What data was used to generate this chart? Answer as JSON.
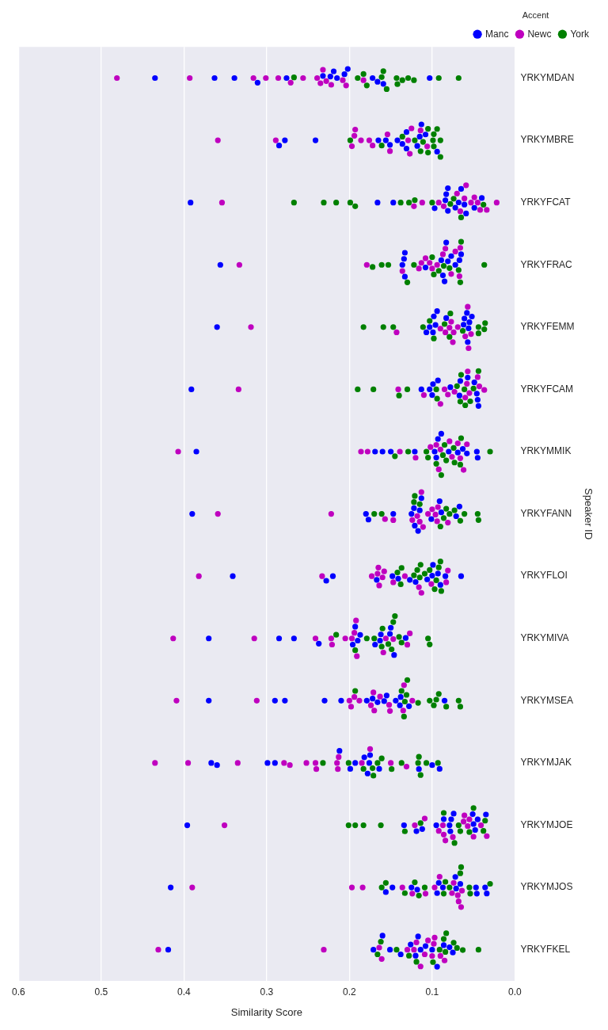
{
  "chart_data": {
    "type": "scatter",
    "orientation": "horizontal",
    "categories": [
      "YRKYMDAN",
      "YRKYMBRE",
      "YRKYFCAT",
      "YRKYFRAC",
      "YRKYFEMM",
      "YRKYFCAM",
      "YRKYMMIK",
      "YRKYFANN",
      "YRKYFLOI",
      "YRKYMIVA",
      "YRKYMSEA",
      "YRKYMJAK",
      "YRKYMJOE",
      "YRKYMJOS",
      "YRKYFKEL"
    ],
    "xlim": [
      0.6,
      0
    ],
    "xticks": [
      0.6,
      0.5,
      0.4,
      0.3,
      0.2,
      0.1,
      {
        "value": 0,
        "label": "0.0"
      }
    ],
    "xlabel": "Similarity Score",
    "ylabel": "Speaker ID",
    "legend_title": "Accent",
    "legend": "top right",
    "grid": "x",
    "marker": "circle",
    "series": [
      {
        "name": "Manc",
        "color": "#0000ff",
        "x": [
          "YRKYMDAN",
          "YRKYMDAN",
          "YRKYMDAN",
          "YRKYMDAN",
          "YRKYMDAN",
          "YRKYMDAN",
          "YRKYMDAN",
          "YRKYMDAN",
          "YRKYMDAN",
          "YRKYMDAN",
          "YRKYMDAN",
          "YRKYMDAN",
          "YRKYMDAN",
          "YRKYMDAN",
          "YRKYMDAN",
          "YRKYMBRE",
          "YRKYMBRE",
          "YRKYMBRE",
          "YRKYMBRE",
          "YRKYMBRE",
          "YRKYMBRE",
          "YRKYMBRE",
          "YRKYMBRE",
          "YRKYMBRE",
          "YRKYMBRE",
          "YRKYMBRE",
          "YRKYMBRE",
          "YRKYMBRE",
          "YRKYMBRE",
          "YRKYMBRE",
          "YRKYFCAT",
          "YRKYFCAT",
          "YRKYFCAT",
          "YRKYFCAT",
          "YRKYFCAT",
          "YRKYFCAT",
          "YRKYFCAT",
          "YRKYFCAT",
          "YRKYFCAT",
          "YRKYFCAT",
          "YRKYFCAT",
          "YRKYFCAT",
          "YRKYFCAT",
          "YRKYFCAT",
          "YRKYFCAT",
          "YRKYFRAC",
          "YRKYFRAC",
          "YRKYFRAC",
          "YRKYFRAC",
          "YRKYFRAC",
          "YRKYFRAC",
          "YRKYFRAC",
          "YRKYFRAC",
          "YRKYFRAC",
          "YRKYFRAC",
          "YRKYFRAC",
          "YRKYFRAC",
          "YRKYFRAC",
          "YRKYFRAC",
          "YRKYFRAC",
          "YRKYFEMM",
          "YRKYFEMM",
          "YRKYFEMM",
          "YRKYFEMM",
          "YRKYFEMM",
          "YRKYFEMM",
          "YRKYFEMM",
          "YRKYFEMM",
          "YRKYFEMM",
          "YRKYFEMM",
          "YRKYFEMM",
          "YRKYFEMM",
          "YRKYFEMM",
          "YRKYFEMM",
          "YRKYFEMM",
          "YRKYFCAM",
          "YRKYFCAM",
          "YRKYFCAM",
          "YRKYFCAM",
          "YRKYFCAM",
          "YRKYFCAM",
          "YRKYFCAM",
          "YRKYFCAM",
          "YRKYFCAM",
          "YRKYFCAM",
          "YRKYFCAM",
          "YRKYFCAM",
          "YRKYFCAM",
          "YRKYFCAM",
          "YRKYMMIK",
          "YRKYMMIK",
          "YRKYMMIK",
          "YRKYMMIK",
          "YRKYMMIK",
          "YRKYMMIK",
          "YRKYMMIK",
          "YRKYMMIK",
          "YRKYMMIK",
          "YRKYMMIK",
          "YRKYMMIK",
          "YRKYMMIK",
          "YRKYMMIK",
          "YRKYMMIK",
          "YRKYMMIK",
          "YRKYFANN",
          "YRKYFANN",
          "YRKYFANN",
          "YRKYFANN",
          "YRKYFANN",
          "YRKYFANN",
          "YRKYFANN",
          "YRKYFANN",
          "YRKYFANN",
          "YRKYFANN",
          "YRKYFANN",
          "YRKYFANN",
          "YRKYFANN",
          "YRKYFANN",
          "YRKYFANN",
          "YRKYFLOI",
          "YRKYFLOI",
          "YRKYFLOI",
          "YRKYFLOI",
          "YRKYFLOI",
          "YRKYFLOI",
          "YRKYFLOI",
          "YRKYFLOI",
          "YRKYFLOI",
          "YRKYFLOI",
          "YRKYFLOI",
          "YRKYFLOI",
          "YRKYFLOI",
          "YRKYFLOI",
          "YRKYFLOI",
          "YRKYMIVA",
          "YRKYMIVA",
          "YRKYMIVA",
          "YRKYMIVA",
          "YRKYMIVA",
          "YRKYMIVA",
          "YRKYMIVA",
          "YRKYMIVA",
          "YRKYMIVA",
          "YRKYMIVA",
          "YRKYMIVA",
          "YRKYMIVA",
          "YRKYMIVA",
          "YRKYMIVA",
          "YRKYMIVA",
          "YRKYMSEA",
          "YRKYMSEA",
          "YRKYMSEA",
          "YRKYMSEA",
          "YRKYMSEA",
          "YRKYMSEA",
          "YRKYMSEA",
          "YRKYMSEA",
          "YRKYMSEA",
          "YRKYMSEA",
          "YRKYMSEA",
          "YRKYMSEA",
          "YRKYMSEA",
          "YRKYMSEA",
          "YRKYMSEA",
          "YRKYMJAK",
          "YRKYMJAK",
          "YRKYMJAK",
          "YRKYMJAK",
          "YRKYMJAK",
          "YRKYMJAK",
          "YRKYMJAK",
          "YRKYMJAK",
          "YRKYMJAK",
          "YRKYMJAK",
          "YRKYMJAK",
          "YRKYMJAK",
          "YRKYMJAK",
          "YRKYMJAK",
          "YRKYMJAK",
          "YRKYMJOE",
          "YRKYMJOE",
          "YRKYMJOE",
          "YRKYMJOE",
          "YRKYMJOE",
          "YRKYMJOE",
          "YRKYMJOE",
          "YRKYMJOE",
          "YRKYMJOE",
          "YRKYMJOE",
          "YRKYMJOE",
          "YRKYMJOE",
          "YRKYMJOE",
          "YRKYMJOE",
          "YRKYMJOE",
          "YRKYMJOS",
          "YRKYMJOS",
          "YRKYMJOS",
          "YRKYMJOS",
          "YRKYMJOS",
          "YRKYMJOS",
          "YRKYMJOS",
          "YRKYMJOS",
          "YRKYMJOS",
          "YRKYMJOS",
          "YRKYMJOS",
          "YRKYMJOS",
          "YRKYMJOS",
          "YRKYMJOS",
          "YRKYMJOS",
          "YRKYFKEL",
          "YRKYFKEL",
          "YRKYFKEL",
          "YRKYFKEL",
          "YRKYFKEL",
          "YRKYFKEL",
          "YRKYFKEL",
          "YRKYFKEL",
          "YRKYFKEL",
          "YRKYFKEL",
          "YRKYFKEL",
          "YRKYFKEL",
          "YRKYFKEL",
          "YRKYFKEL",
          "YRKYFKEL"
        ],
        "values": [
          0.223,
          0.232,
          0.206,
          0.159,
          0.435,
          0.363,
          0.339,
          0.311,
          0.276,
          0.215,
          0.202,
          0.166,
          0.103,
          0.219,
          0.172,
          0.115,
          0.131,
          0.094,
          0.165,
          0.142,
          0.278,
          0.241,
          0.151,
          0.113,
          0.285,
          0.136,
          0.118,
          0.156,
          0.108,
          0.131,
          0.065,
          0.081,
          0.059,
          0.081,
          0.04,
          0.392,
          0.166,
          0.097,
          0.084,
          0.147,
          0.068,
          0.049,
          0.083,
          0.072,
          0.061,
          0.085,
          0.072,
          0.067,
          0.083,
          0.134,
          0.089,
          0.133,
          0.356,
          0.065,
          0.108,
          0.077,
          0.133,
          0.081,
          0.136,
          0.087,
          0.057,
          0.099,
          0.056,
          0.055,
          0.36,
          0.103,
          0.083,
          0.052,
          0.094,
          0.061,
          0.107,
          0.096,
          0.098,
          0.062,
          0.058,
          0.049,
          0.066,
          0.057,
          0.044,
          0.078,
          0.099,
          0.391,
          0.103,
          0.093,
          0.113,
          0.045,
          0.1,
          0.067,
          0.046,
          0.095,
          0.097,
          0.385,
          0.16,
          0.15,
          0.069,
          0.058,
          0.045,
          0.169,
          0.121,
          0.08,
          0.046,
          0.063,
          0.093,
          0.089,
          0.125,
          0.071,
          0.117,
          0.39,
          0.18,
          0.147,
          0.089,
          0.177,
          0.067,
          0.113,
          0.091,
          0.122,
          0.101,
          0.121,
          0.115,
          0.167,
          0.099,
          0.09,
          0.106,
          0.084,
          0.148,
          0.341,
          0.22,
          0.127,
          0.065,
          0.228,
          0.12,
          0.141,
          0.1,
          0.093,
          0.193,
          0.151,
          0.146,
          0.132,
          0.187,
          0.37,
          0.285,
          0.267,
          0.237,
          0.169,
          0.19,
          0.162,
          0.196,
          0.163,
          0.15,
          0.138,
          0.172,
          0.158,
          0.166,
          0.139,
          0.128,
          0.37,
          0.29,
          0.278,
          0.23,
          0.21,
          0.179,
          0.155,
          0.144,
          0.085,
          0.175,
          0.36,
          0.29,
          0.212,
          0.193,
          0.182,
          0.1,
          0.091,
          0.299,
          0.367,
          0.199,
          0.178,
          0.164,
          0.116,
          0.176,
          0.396,
          0.05,
          0.086,
          0.074,
          0.119,
          0.079,
          0.045,
          0.134,
          0.112,
          0.095,
          0.048,
          0.035,
          0.077,
          0.078,
          0.051,
          0.072,
          0.066,
          0.092,
          0.156,
          0.036,
          0.094,
          0.416,
          0.148,
          0.046,
          0.118,
          0.047,
          0.034,
          0.087,
          0.125,
          0.071,
          0.1,
          0.075,
          0.108,
          0.16,
          0.094,
          0.419,
          0.171,
          0.151,
          0.117,
          0.138,
          0.12,
          0.079,
          0.126,
          0.114,
          0.086
        ]
      },
      {
        "name": "Newc",
        "color": "#bf00bf",
        "x": [
          "YRKYMDAN",
          "YRKYMDAN",
          "YRKYMDAN",
          "YRKYMDAN",
          "YRKYMDAN",
          "YRKYMDAN",
          "YRKYMDAN",
          "YRKYMDAN",
          "YRKYMDAN",
          "YRKYMDAN",
          "YRKYMDAN",
          "YRKYMDAN",
          "YRKYMDAN",
          "YRKYMDAN",
          "YRKYMDAN",
          "YRKYMBRE",
          "YRKYMBRE",
          "YRKYMBRE",
          "YRKYMBRE",
          "YRKYMBRE",
          "YRKYMBRE",
          "YRKYMBRE",
          "YRKYMBRE",
          "YRKYMBRE",
          "YRKYMBRE",
          "YRKYMBRE",
          "YRKYMBRE",
          "YRKYMBRE",
          "YRKYMBRE",
          "YRKYMBRE",
          "YRKYFCAT",
          "YRKYFCAT",
          "YRKYFCAT",
          "YRKYFCAT",
          "YRKYFCAT",
          "YRKYFCAT",
          "YRKYFCAT",
          "YRKYFCAT",
          "YRKYFCAT",
          "YRKYFCAT",
          "YRKYFCAT",
          "YRKYFCAT",
          "YRKYFCAT",
          "YRKYFCAT",
          "YRKYFCAT",
          "YRKYFRAC",
          "YRKYFRAC",
          "YRKYFRAC",
          "YRKYFRAC",
          "YRKYFRAC",
          "YRKYFRAC",
          "YRKYFRAC",
          "YRKYFRAC",
          "YRKYFRAC",
          "YRKYFRAC",
          "YRKYFRAC",
          "YRKYFRAC",
          "YRKYFRAC",
          "YRKYFRAC",
          "YRKYFRAC",
          "YRKYFEMM",
          "YRKYFEMM",
          "YRKYFEMM",
          "YRKYFEMM",
          "YRKYFEMM",
          "YRKYFEMM",
          "YRKYFEMM",
          "YRKYFEMM",
          "YRKYFEMM",
          "YRKYFEMM",
          "YRKYFEMM",
          "YRKYFEMM",
          "YRKYFEMM",
          "YRKYFCAM",
          "YRKYFCAM",
          "YRKYFCAM",
          "YRKYFCAM",
          "YRKYFCAM",
          "YRKYFCAM",
          "YRKYFCAM",
          "YRKYFCAM",
          "YRKYFCAM",
          "YRKYFCAM",
          "YRKYFCAM",
          "YRKYFCAM",
          "YRKYFCAM",
          "YRKYFCAM",
          "YRKYMMIK",
          "YRKYMMIK",
          "YRKYMMIK",
          "YRKYMMIK",
          "YRKYMMIK",
          "YRKYMMIK",
          "YRKYMMIK",
          "YRKYMMIK",
          "YRKYMMIK",
          "YRKYMMIK",
          "YRKYMMIK",
          "YRKYMMIK",
          "YRKYMMIK",
          "YRKYMMIK",
          "YRKYMMIK",
          "YRKYFANN",
          "YRKYFANN",
          "YRKYFANN",
          "YRKYFANN",
          "YRKYFANN",
          "YRKYFANN",
          "YRKYFANN",
          "YRKYFANN",
          "YRKYFANN",
          "YRKYFANN",
          "YRKYFANN",
          "YRKYFANN",
          "YRKYFANN",
          "YRKYFANN",
          "YRKYFANN",
          "YRKYFLOI",
          "YRKYFLOI",
          "YRKYFLOI",
          "YRKYFLOI",
          "YRKYFLOI",
          "YRKYFLOI",
          "YRKYFLOI",
          "YRKYFLOI",
          "YRKYFLOI",
          "YRKYFLOI",
          "YRKYFLOI",
          "YRKYFLOI",
          "YRKYFLOI",
          "YRKYFLOI",
          "YRKYFLOI",
          "YRKYMIVA",
          "YRKYMIVA",
          "YRKYMIVA",
          "YRKYMIVA",
          "YRKYMIVA",
          "YRKYMIVA",
          "YRKYMIVA",
          "YRKYMIVA",
          "YRKYMIVA",
          "YRKYMIVA",
          "YRKYMIVA",
          "YRKYMIVA",
          "YRKYMIVA",
          "YRKYMIVA",
          "YRKYMIVA",
          "YRKYMSEA",
          "YRKYMSEA",
          "YRKYMSEA",
          "YRKYMSEA",
          "YRKYMSEA",
          "YRKYMSEA",
          "YRKYMSEA",
          "YRKYMSEA",
          "YRKYMSEA",
          "YRKYMSEA",
          "YRKYMSEA",
          "YRKYMSEA",
          "YRKYMSEA",
          "YRKYMSEA",
          "YRKYMSEA",
          "YRKYMJAK",
          "YRKYMJAK",
          "YRKYMJAK",
          "YRKYMJAK",
          "YRKYMJAK",
          "YRKYMJAK",
          "YRKYMJAK",
          "YRKYMJAK",
          "YRKYMJAK",
          "YRKYMJAK",
          "YRKYMJAK",
          "YRKYMJAK",
          "YRKYMJAK",
          "YRKYMJAK",
          "YRKYMJAK",
          "YRKYMJOE",
          "YRKYMJOE",
          "YRKYMJOE",
          "YRKYMJOE",
          "YRKYMJOE",
          "YRKYMJOE",
          "YRKYMJOE",
          "YRKYMJOE",
          "YRKYMJOE",
          "YRKYMJOE",
          "YRKYMJOE",
          "YRKYMJOE",
          "YRKYMJOE",
          "YRKYMJOE",
          "YRKYMJOE",
          "YRKYMJOS",
          "YRKYMJOS",
          "YRKYMJOS",
          "YRKYMJOS",
          "YRKYMJOS",
          "YRKYMJOS",
          "YRKYMJOS",
          "YRKYMJOS",
          "YRKYMJOS",
          "YRKYMJOS",
          "YRKYMJOS",
          "YRKYMJOS",
          "YRKYMJOS",
          "YRKYMJOS",
          "YRKYFKEL",
          "YRKYFKEL",
          "YRKYFKEL",
          "YRKYFKEL",
          "YRKYFKEL",
          "YRKYFKEL",
          "YRKYFKEL",
          "YRKYFKEL",
          "YRKYFKEL",
          "YRKYFKEL",
          "YRKYFKEL",
          "YRKYFKEL",
          "YRKYFKEL",
          "YRKYFKEL",
          "YRKYFKEL"
        ],
        "values": [
          0.235,
          0.208,
          0.222,
          0.183,
          0.481,
          0.393,
          0.301,
          0.286,
          0.256,
          0.239,
          0.228,
          0.316,
          0.271,
          0.232,
          0.204,
          0.197,
          0.154,
          0.129,
          0.114,
          0.194,
          0.359,
          0.289,
          0.186,
          0.172,
          0.125,
          0.193,
          0.176,
          0.151,
          0.106,
          0.127,
          0.086,
          0.061,
          0.042,
          0.07,
          0.122,
          0.092,
          0.053,
          0.354,
          0.112,
          0.045,
          0.034,
          0.022,
          0.059,
          0.049,
          0.066,
          0.136,
          0.087,
          0.1,
          0.116,
          0.094,
          0.103,
          0.113,
          0.333,
          0.108,
          0.077,
          0.179,
          0.066,
          0.067,
          0.084,
          0.072,
          0.079,
          0.06,
          0.075,
          0.09,
          0.069,
          0.319,
          0.143,
          0.074,
          0.053,
          0.077,
          0.056,
          0.084,
          0.057,
          0.045,
          0.058,
          0.09,
          0.055,
          0.085,
          0.334,
          0.11,
          0.073,
          0.037,
          0.081,
          0.043,
          0.141,
          0.057,
          0.06,
          0.09,
          0.076,
          0.062,
          0.407,
          0.178,
          0.139,
          0.12,
          0.102,
          0.079,
          0.186,
          0.092,
          0.069,
          0.058,
          0.095,
          0.066,
          0.118,
          0.115,
          0.094,
          0.093,
          0.113,
          0.105,
          0.096,
          0.359,
          0.222,
          0.157,
          0.111,
          0.1,
          0.081,
          0.147,
          0.124,
          0.101,
          0.165,
          0.113,
          0.164,
          0.233,
          0.382,
          0.173,
          0.158,
          0.147,
          0.081,
          0.133,
          0.083,
          0.16,
          0.166,
          0.116,
          0.194,
          0.191,
          0.222,
          0.156,
          0.197,
          0.413,
          0.315,
          0.127,
          0.205,
          0.159,
          0.241,
          0.221,
          0.13,
          0.192,
          0.147,
          0.134,
          0.198,
          0.152,
          0.409,
          0.312,
          0.163,
          0.151,
          0.2,
          0.188,
          0.171,
          0.135,
          0.124,
          0.194,
          0.17,
          0.174,
          0.175,
          0.215,
          0.185,
          0.214,
          0.241,
          0.435,
          0.395,
          0.335,
          0.272,
          0.252,
          0.131,
          0.24,
          0.279,
          0.213,
          0.15,
          0.351,
          0.086,
          0.075,
          0.041,
          0.061,
          0.05,
          0.109,
          0.092,
          0.055,
          0.034,
          0.084,
          0.062,
          0.121,
          0.087,
          0.057,
          0.069,
          0.124,
          0.076,
          0.064,
          0.39,
          0.197,
          0.184,
          0.108,
          0.074,
          0.091,
          0.065,
          0.136,
          0.097,
          0.068,
          0.13,
          0.114,
          0.161,
          0.097,
          0.122,
          0.085,
          0.431,
          0.231,
          0.105,
          0.09,
          0.109,
          0.098,
          0.164,
          0.119,
          0.1
        ]
      },
      {
        "name": "York",
        "color": "#008000",
        "x": [
          "YRKYMDAN",
          "YRKYMDAN",
          "YRKYMDAN",
          "YRKYMDAN",
          "YRKYMDAN",
          "YRKYMDAN",
          "YRKYMDAN",
          "YRKYMDAN",
          "YRKYMDAN",
          "YRKYMDAN",
          "YRKYMDAN",
          "YRKYMDAN",
          "YRKYMDAN",
          "YRKYMDAN",
          "YRKYMBRE",
          "YRKYMBRE",
          "YRKYMBRE",
          "YRKYMBRE",
          "YRKYMBRE",
          "YRKYMBRE",
          "YRKYMBRE",
          "YRKYMBRE",
          "YRKYMBRE",
          "YRKYMBRE",
          "YRKYMBRE",
          "YRKYMBRE",
          "YRKYMBRE",
          "YRKYMBRE",
          "YRKYFCAT",
          "YRKYFCAT",
          "YRKYFCAT",
          "YRKYFCAT",
          "YRKYFCAT",
          "YRKYFCAT",
          "YRKYFCAT",
          "YRKYFCAT",
          "YRKYFCAT",
          "YRKYFCAT",
          "YRKYFCAT",
          "YRKYFCAT",
          "YRKYFCAT",
          "YRKYFRAC",
          "YRKYFRAC",
          "YRKYFRAC",
          "YRKYFRAC",
          "YRKYFRAC",
          "YRKYFRAC",
          "YRKYFRAC",
          "YRKYFRAC",
          "YRKYFRAC",
          "YRKYFRAC",
          "YRKYFRAC",
          "YRKYFRAC",
          "YRKYFRAC",
          "YRKYFRAC",
          "YRKYFEMM",
          "YRKYFEMM",
          "YRKYFEMM",
          "YRKYFEMM",
          "YRKYFEMM",
          "YRKYFEMM",
          "YRKYFEMM",
          "YRKYFEMM",
          "YRKYFEMM",
          "YRKYFEMM",
          "YRKYFEMM",
          "YRKYFEMM",
          "YRKYFEMM",
          "YRKYFEMM",
          "YRKYFCAM",
          "YRKYFCAM",
          "YRKYFCAM",
          "YRKYFCAM",
          "YRKYFCAM",
          "YRKYFCAM",
          "YRKYFCAM",
          "YRKYFCAM",
          "YRKYFCAM",
          "YRKYFCAM",
          "YRKYFCAM",
          "YRKYFCAM",
          "YRKYFCAM",
          "YRKYFCAM",
          "YRKYMMIK",
          "YRKYMMIK",
          "YRKYMMIK",
          "YRKYMMIK",
          "YRKYMMIK",
          "YRKYMMIK",
          "YRKYMMIK",
          "YRKYMMIK",
          "YRKYMMIK",
          "YRKYMMIK",
          "YRKYMMIK",
          "YRKYMMIK",
          "YRKYMMIK",
          "YRKYMMIK",
          "YRKYFANN",
          "YRKYFANN",
          "YRKYFANN",
          "YRKYFANN",
          "YRKYFANN",
          "YRKYFANN",
          "YRKYFANN",
          "YRKYFANN",
          "YRKYFANN",
          "YRKYFANN",
          "YRKYFANN",
          "YRKYFANN",
          "YRKYFANN",
          "YRKYFANN",
          "YRKYFLOI",
          "YRKYFLOI",
          "YRKYFLOI",
          "YRKYFLOI",
          "YRKYFLOI",
          "YRKYFLOI",
          "YRKYFLOI",
          "YRKYFLOI",
          "YRKYFLOI",
          "YRKYFLOI",
          "YRKYFLOI",
          "YRKYFLOI",
          "YRKYFLOI",
          "YRKYFLOI",
          "YRKYMIVA",
          "YRKYMIVA",
          "YRKYMIVA",
          "YRKYMIVA",
          "YRKYMIVA",
          "YRKYMIVA",
          "YRKYMIVA",
          "YRKYMIVA",
          "YRKYMIVA",
          "YRKYMIVA",
          "YRKYMIVA",
          "YRKYMIVA",
          "YRKYMIVA",
          "YRKYMIVA",
          "YRKYMSEA",
          "YRKYMSEA",
          "YRKYMSEA",
          "YRKYMSEA",
          "YRKYMSEA",
          "YRKYMSEA",
          "YRKYMSEA",
          "YRKYMSEA",
          "YRKYMSEA",
          "YRKYMSEA",
          "YRKYMSEA",
          "YRKYMSEA",
          "YRKYMSEA",
          "YRKYMSEA",
          "YRKYMJAK",
          "YRKYMJAK",
          "YRKYMJAK",
          "YRKYMJAK",
          "YRKYMJAK",
          "YRKYMJAK",
          "YRKYMJAK",
          "YRKYMJAK",
          "YRKYMJAK",
          "YRKYMJAK",
          "YRKYMJAK",
          "YRKYMJAK",
          "YRKYMJAK",
          "YRKYMJAK",
          "YRKYMJOE",
          "YRKYMJOE",
          "YRKYMJOE",
          "YRKYMJOE",
          "YRKYMJOE",
          "YRKYMJOE",
          "YRKYMJOE",
          "YRKYMJOE",
          "YRKYMJOE",
          "YRKYMJOE",
          "YRKYMJOE",
          "YRKYMJOE",
          "YRKYMJOE",
          "YRKYMJOE",
          "YRKYMJOS",
          "YRKYMJOS",
          "YRKYMJOS",
          "YRKYMJOS",
          "YRKYMJOS",
          "YRKYMJOS",
          "YRKYMJOS",
          "YRKYMJOS",
          "YRKYMJOS",
          "YRKYMJOS",
          "YRKYMJOS",
          "YRKYMJOS",
          "YRKYMJOS",
          "YRKYMJOS",
          "YRKYFKEL",
          "YRKYFKEL",
          "YRKYFKEL",
          "YRKYFKEL",
          "YRKYFKEL",
          "YRKYFKEL",
          "YRKYFKEL",
          "YRKYFKEL",
          "YRKYFKEL",
          "YRKYFKEL",
          "YRKYFKEL",
          "YRKYFKEL",
          "YRKYFKEL",
          "YRKYFKEL"
        ],
        "values": [
          0.161,
          0.143,
          0.267,
          0.19,
          0.179,
          0.155,
          0.136,
          0.122,
          0.092,
          0.068,
          0.183,
          0.159,
          0.142,
          0.129,
          0.111,
          0.121,
          0.105,
          0.094,
          0.105,
          0.161,
          0.136,
          0.09,
          0.099,
          0.09,
          0.199,
          0.098,
          0.114,
          0.098,
          0.1,
          0.065,
          0.267,
          0.231,
          0.216,
          0.193,
          0.138,
          0.074,
          0.121,
          0.199,
          0.078,
          0.038,
          0.128,
          0.066,
          0.079,
          0.065,
          0.172,
          0.153,
          0.122,
          0.098,
          0.037,
          0.161,
          0.13,
          0.086,
          0.092,
          0.1,
          0.068,
          0.063,
          0.079,
          0.044,
          0.098,
          0.111,
          0.044,
          0.183,
          0.159,
          0.036,
          0.085,
          0.037,
          0.147,
          0.103,
          0.078,
          0.061,
          0.095,
          0.044,
          0.066,
          0.19,
          0.171,
          0.14,
          0.13,
          0.06,
          0.05,
          0.065,
          0.054,
          0.094,
          0.07,
          0.066,
          0.087,
          0.065,
          0.083,
          0.107,
          0.095,
          0.073,
          0.129,
          0.089,
          0.03,
          0.145,
          0.105,
          0.085,
          0.074,
          0.122,
          0.086,
          0.079,
          0.066,
          0.17,
          0.121,
          0.073,
          0.061,
          0.044,
          0.161,
          0.045,
          0.083,
          0.115,
          0.09,
          0.092,
          0.142,
          0.122,
          0.138,
          0.118,
          0.095,
          0.137,
          0.114,
          0.103,
          0.09,
          0.109,
          0.097,
          0.115,
          0.089,
          0.147,
          0.161,
          0.16,
          0.145,
          0.216,
          0.179,
          0.137,
          0.103,
          0.149,
          0.17,
          0.14,
          0.105,
          0.193,
          0.153,
          0.133,
          0.13,
          0.098,
          0.193,
          0.092,
          0.117,
          0.103,
          0.083,
          0.066,
          0.095,
          0.068,
          0.131,
          0.137,
          0.134,
          0.117,
          0.116,
          0.166,
          0.107,
          0.201,
          0.232,
          0.172,
          0.161,
          0.149,
          0.114,
          0.137,
          0.093,
          0.183,
          0.171,
          0.055,
          0.086,
          0.114,
          0.036,
          0.201,
          0.193,
          0.183,
          0.162,
          0.133,
          0.068,
          0.073,
          0.066,
          0.05,
          0.038,
          0.161,
          0.086,
          0.065,
          0.116,
          0.054,
          0.084,
          0.133,
          0.03,
          0.055,
          0.156,
          0.079,
          0.109,
          0.121,
          0.066,
          0.119,
          0.086,
          0.166,
          0.099,
          0.084,
          0.143,
          0.074,
          0.128,
          0.083,
          0.063,
          0.044,
          0.162,
          0.07,
          0.091
        ]
      }
    ]
  }
}
